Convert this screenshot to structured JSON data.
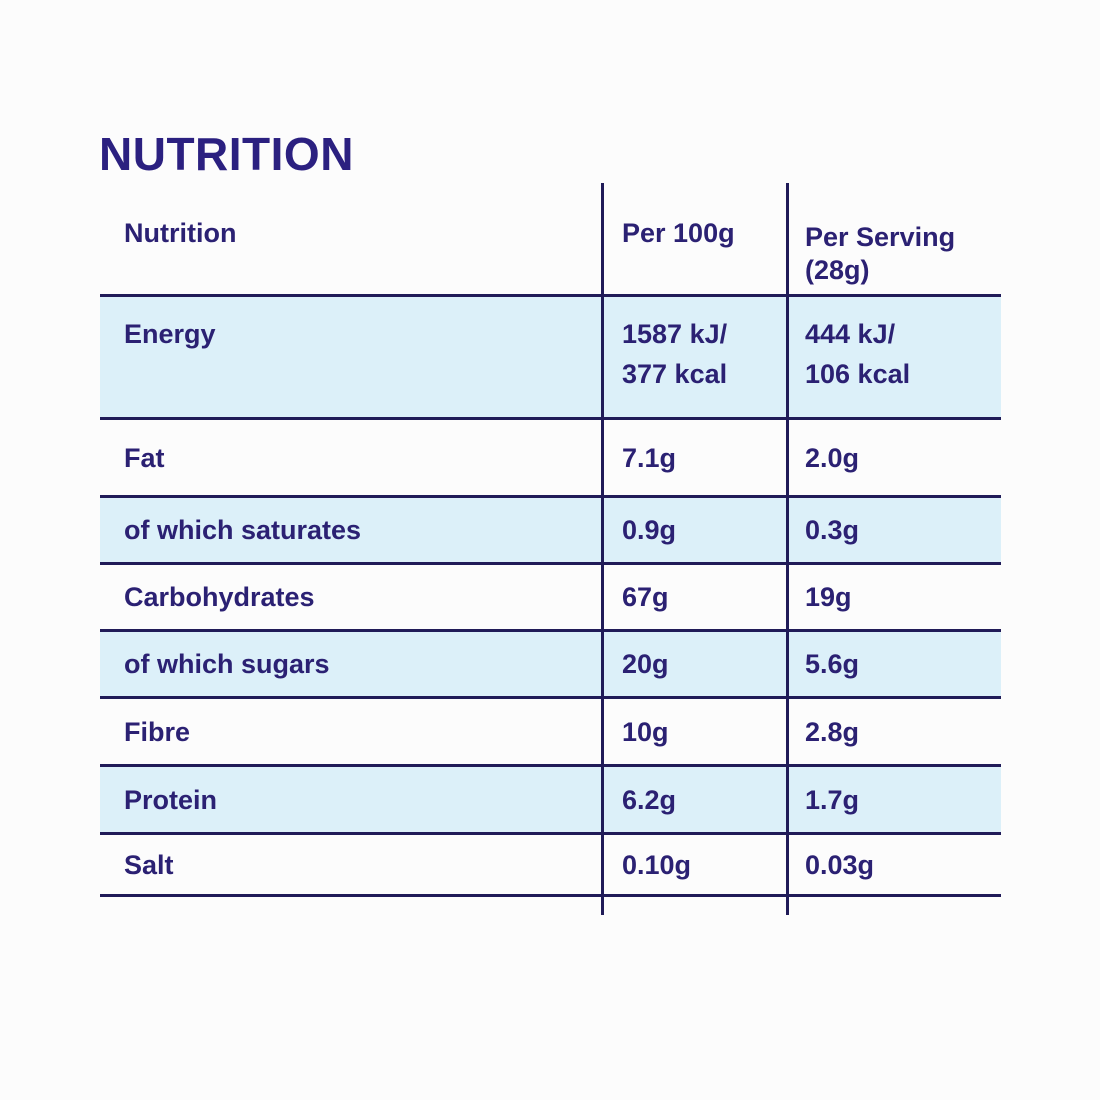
{
  "page": {
    "title": "NUTRITION"
  },
  "colors": {
    "heading_text": "#2b2080",
    "body_text": "#2b2173",
    "table_lines": "#201b58",
    "shaded_row_background": "#dcf0f9",
    "page_background": "#fcfcfc"
  },
  "table": {
    "headers": {
      "nutrition": "Nutrition",
      "per_100g": "Per 100g",
      "per_serving": "Per Serving\n(28g)"
    },
    "rows": [
      {
        "label": "Energy",
        "per_100g": "1587 kJ/\n377 kcal",
        "per_serving": "444 kJ/\n106 kcal"
      },
      {
        "label": "Fat",
        "per_100g": "7.1g",
        "per_serving": "2.0g"
      },
      {
        "label": "of which saturates",
        "per_100g": "0.9g",
        "per_serving": "0.3g"
      },
      {
        "label": "Carbohydrates",
        "per_100g": "67g",
        "per_serving": "19g"
      },
      {
        "label": "of which sugars",
        "per_100g": "20g",
        "per_serving": "5.6g"
      },
      {
        "label": "Fibre",
        "per_100g": "10g",
        "per_serving": "2.8g"
      },
      {
        "label": "Protein",
        "per_100g": "6.2g",
        "per_serving": "1.7g"
      },
      {
        "label": "Salt",
        "per_100g": "0.10g",
        "per_serving": "0.03g"
      }
    ]
  },
  "chart_data": {
    "type": "table",
    "title": "NUTRITION",
    "columns": [
      "Nutrition",
      "Per 100g",
      "Per Serving (28g)"
    ],
    "rows": [
      [
        "Energy",
        "1587 kJ/ 377 kcal",
        "444 kJ/ 106 kcal"
      ],
      [
        "Fat",
        "7.1g",
        "2.0g"
      ],
      [
        "of which saturates",
        "0.9g",
        "0.3g"
      ],
      [
        "Carbohydrates",
        "67g",
        "19g"
      ],
      [
        "of which sugars",
        "20g",
        "5.6g"
      ],
      [
        "Fibre",
        "10g",
        "2.8g"
      ],
      [
        "Protein",
        "6.2g",
        "1.7g"
      ],
      [
        "Salt",
        "0.10g",
        "0.03g"
      ]
    ]
  }
}
